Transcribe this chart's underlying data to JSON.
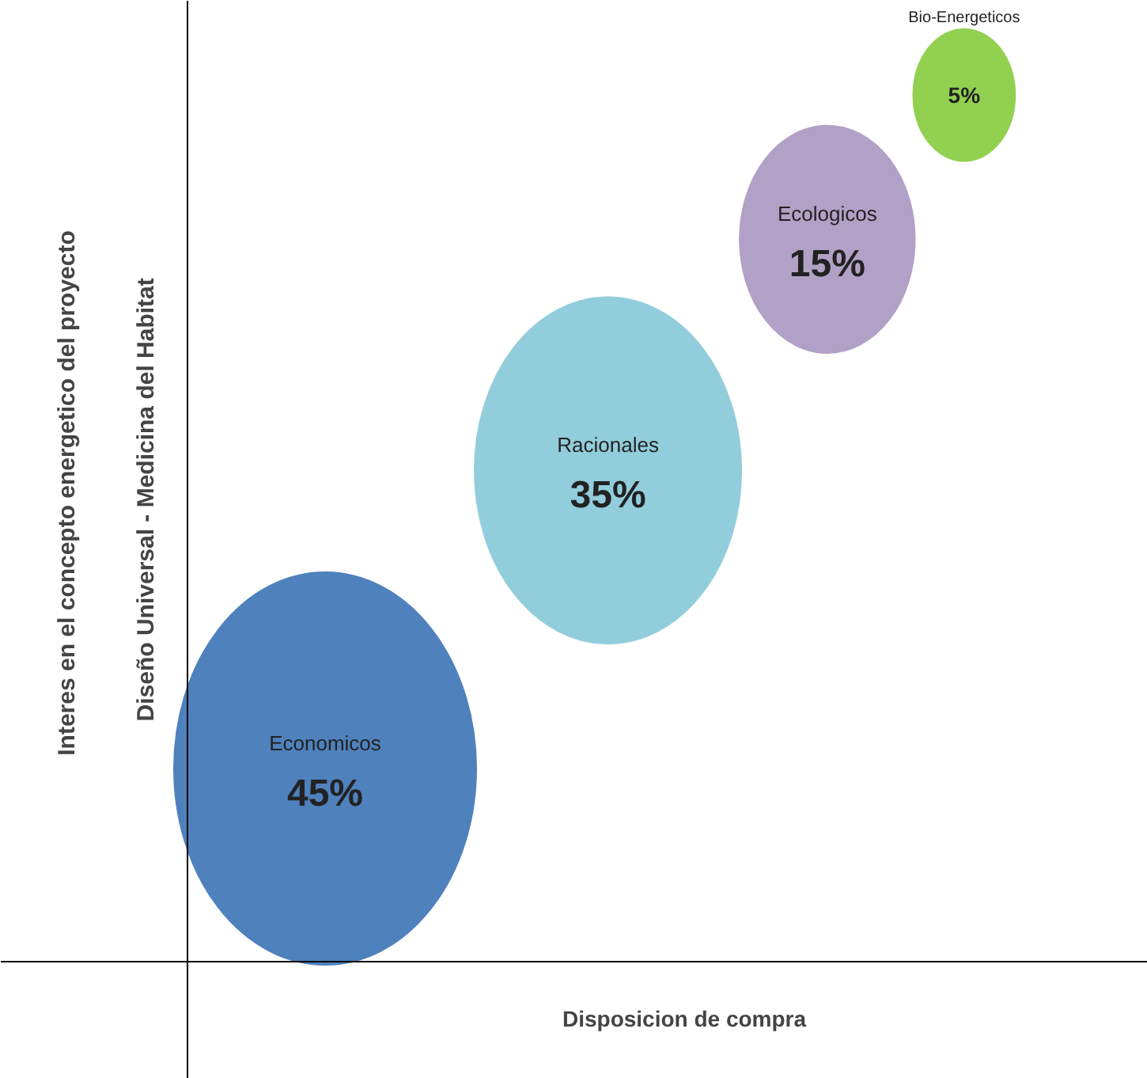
{
  "chart_data": {
    "type": "other",
    "xlabel": "Disposicion de compra",
    "ylabel": "Interes en el concepto energetico del proyecto",
    "annotations": [
      "Diseño Universal  -  Medicina del Habitat"
    ],
    "categories": [
      "Economicos",
      "Racionales",
      "Ecologicos",
      "Bio-Energeticos"
    ],
    "values": [
      45,
      35,
      15,
      5
    ],
    "value_labels": [
      "45%",
      "35%",
      "15%",
      "5%"
    ],
    "colors": [
      "#4f81bd",
      "#92cddc",
      "#b2a1c7",
      "#92d050"
    ]
  }
}
